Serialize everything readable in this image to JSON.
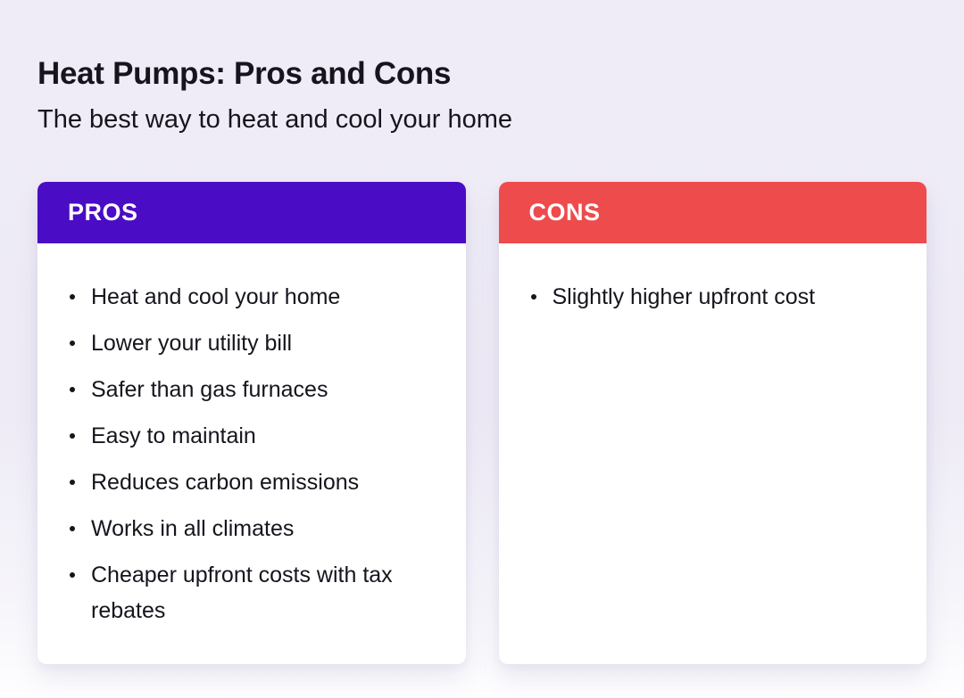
{
  "page": {
    "title": "Heat Pumps: Pros and Cons",
    "subtitle": "The best way to heat and cool your home"
  },
  "colors": {
    "background": "#EEEBF6",
    "pros_header": "#4A0CC5",
    "cons_header": "#EE4B4D",
    "card_body": "#FFFFFF",
    "text": "#17141D",
    "header_text": "#FFFFFF"
  },
  "pros_card": {
    "header": "PROS",
    "items": [
      "Heat and cool your home",
      "Lower your utility bill",
      "Safer than gas furnaces",
      "Easy to maintain",
      "Reduces carbon emissions",
      "Works in all climates",
      "Cheaper upfront costs with tax rebates"
    ]
  },
  "cons_card": {
    "header": "CONS",
    "items": [
      "Slightly higher upfront cost"
    ]
  }
}
